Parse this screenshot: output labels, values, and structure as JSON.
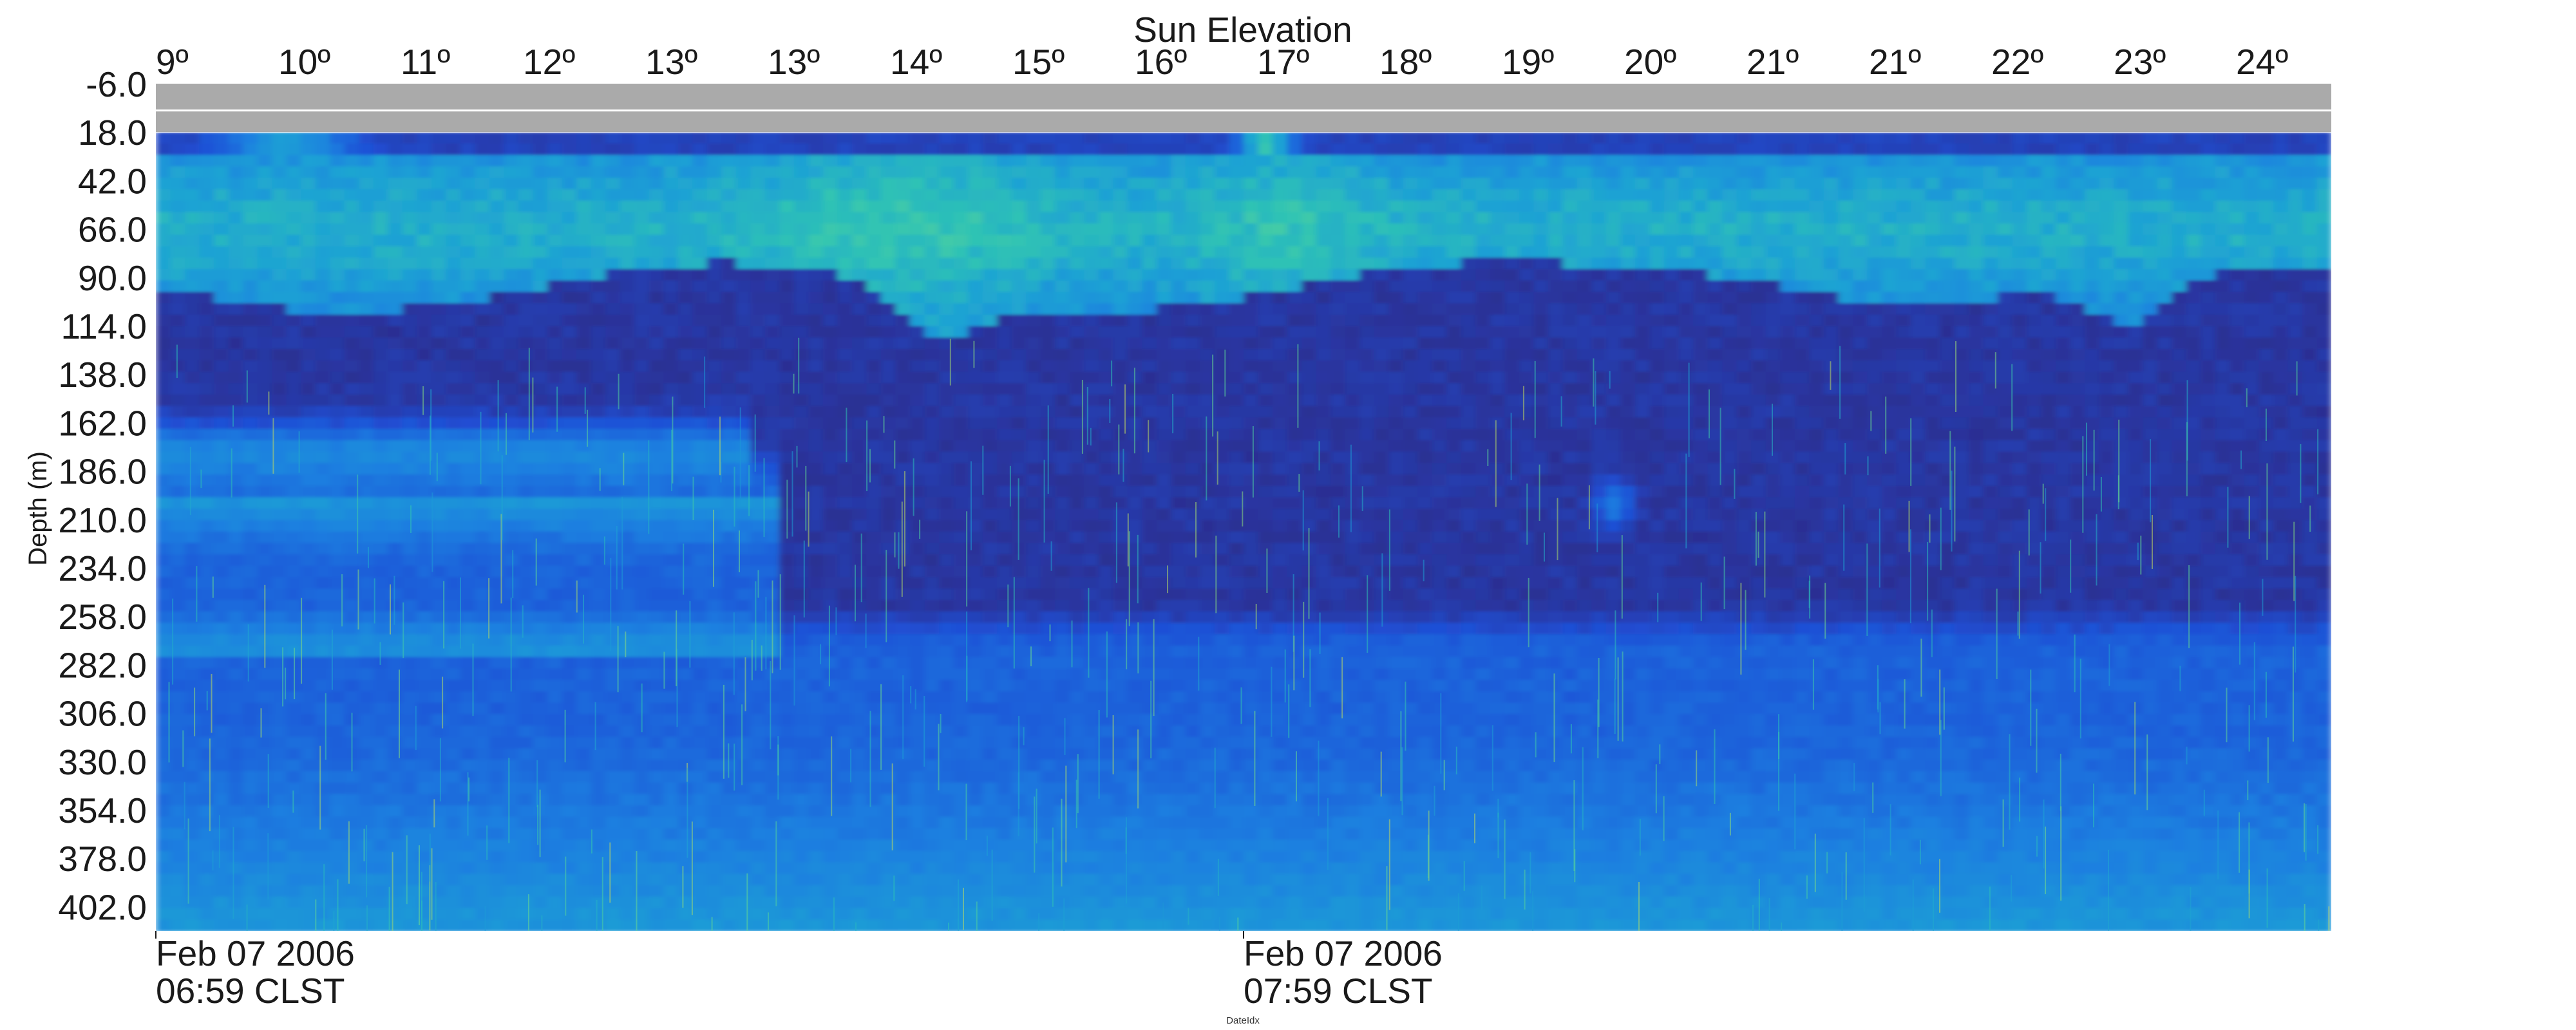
{
  "chart_data": {
    "type": "heatmap",
    "title": "Sun Elevation",
    "ylabel": "Depth (m)",
    "xlabel": "DateIdx",
    "top_axis_ticks": [
      "9º",
      "10º",
      "11º",
      "12º",
      "13º",
      "13º",
      "14º",
      "15º",
      "16º",
      "17º",
      "18º",
      "19º",
      "20º",
      "21º",
      "21º",
      "22º",
      "23º",
      "24º"
    ],
    "y_ticks": [
      "-6.0",
      "18.0",
      "42.0",
      "66.0",
      "90.0",
      "114.0",
      "138.0",
      "162.0",
      "186.0",
      "210.0",
      "234.0",
      "258.0",
      "282.0",
      "306.0",
      "330.0",
      "354.0",
      "378.0",
      "402.0"
    ],
    "ylim": [
      -6,
      414
    ],
    "y_direction": "down",
    "x_ticks": [
      {
        "line1": "Feb 07 2006",
        "line2": "06:59 CLST"
      },
      {
        "line1": "Feb 07 2006",
        "line2": "07:59 CLST"
      }
    ],
    "no_data_band": [
      -6,
      18
    ],
    "no_data_color": "#aaaaaa",
    "colormap": [
      "#2d2b8a",
      "#1f50d6",
      "#1f7fe0",
      "#1ea2d4",
      "#2fc3b4",
      "#6fdc8c",
      "#ead54a"
    ],
    "grid": false,
    "legend": "none"
  }
}
